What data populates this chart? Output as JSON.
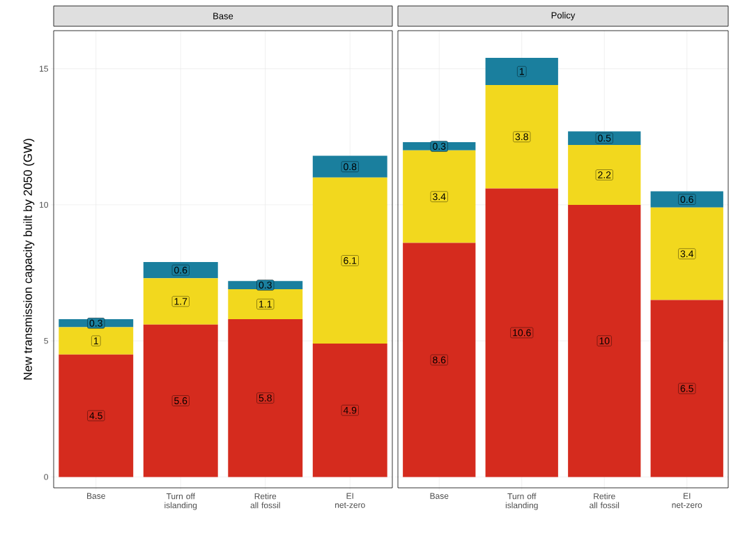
{
  "chart_data": [
    {
      "type": "bar",
      "title": "Base",
      "ylabel": "New transmission capacity built by 2050 (GW)",
      "categories": [
        "Base",
        "Turn off islanding",
        "Retire all fossil",
        "EI net-zero"
      ],
      "stacked": true,
      "ylim": [
        -0.4,
        16.4
      ],
      "yticks": [
        0,
        5,
        10,
        15
      ],
      "grid": true,
      "series": [
        {
          "color": "#d52b1e",
          "values": [
            4.5,
            5.6,
            5.8,
            4.9
          ],
          "value_labels": [
            "4.5",
            "5.6",
            "5.8",
            "4.9"
          ]
        },
        {
          "color": "#f2d81e",
          "values": [
            1,
            1.7,
            1.1,
            6.1
          ],
          "value_labels": [
            "1",
            "1.7",
            "1.1",
            "6.1"
          ]
        },
        {
          "color": "#1a7f9e",
          "values": [
            0.3,
            0.6,
            0.3,
            0.8
          ],
          "value_labels": [
            "0.3",
            "0.6",
            "0.3",
            "0.8"
          ]
        }
      ]
    },
    {
      "type": "bar",
      "title": "Policy",
      "categories": [
        "Base",
        "Turn off islanding",
        "Retire all fossil",
        "EI net-zero"
      ],
      "stacked": true,
      "ylim": [
        -0.4,
        16.4
      ],
      "yticks": [
        0,
        5,
        10,
        15
      ],
      "grid": true,
      "tick_labels": "x",
      "series": [
        {
          "color": "#d52b1e",
          "values": [
            8.6,
            10.6,
            10,
            6.5
          ],
          "value_labels": [
            "8.6",
            "10.6",
            "10",
            "6.5"
          ]
        },
        {
          "color": "#f2d81e",
          "values": [
            3.4,
            3.8,
            2.2,
            3.4
          ],
          "value_labels": [
            "3.4",
            "3.8",
            "2.2",
            "3.4"
          ]
        },
        {
          "color": "#1a7f9e",
          "values": [
            0.3,
            1,
            0.5,
            0.6
          ],
          "value_labels": [
            "0.3",
            "1",
            "0.5",
            "0.6"
          ]
        }
      ]
    }
  ]
}
